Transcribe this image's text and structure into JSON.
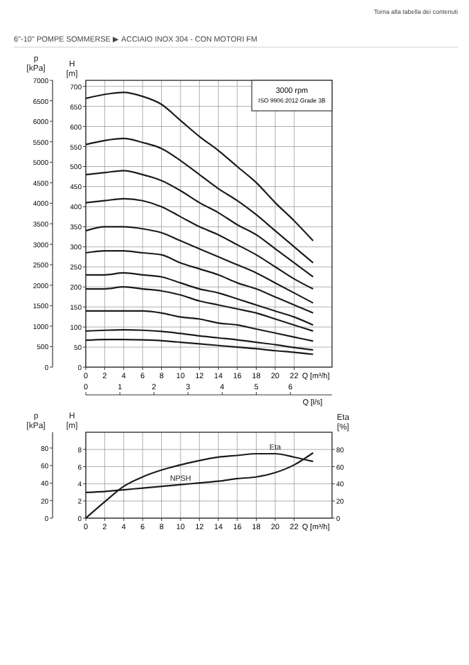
{
  "chart_data": [
    {
      "type": "line",
      "title": "6\"-10\" POMPE SOMMERSE ▶ ACCIAIO INOX 304 - CON MOTORI FM",
      "annotations": [
        "Torna alla tabella dei contenuti",
        "3000 rpm",
        "ISO 9906:2012 Grade 3B"
      ],
      "xlabel": "Q [m³/h]",
      "x2label": "Q [l/s]",
      "ylabel": "H [m]",
      "y2label": "p [kPa]",
      "x": [
        0,
        2,
        4,
        6,
        8,
        10,
        12,
        14,
        16,
        18,
        20,
        22,
        24
      ],
      "xlim": [
        0,
        26
      ],
      "xticks": [
        0,
        2,
        4,
        6,
        8,
        10,
        12,
        14,
        16,
        18,
        20,
        22
      ],
      "x2lim": [
        0,
        7.222
      ],
      "x2ticks": [
        0,
        1,
        2,
        3,
        4,
        5,
        6
      ],
      "ylim": [
        0,
        715
      ],
      "yticks": [
        0,
        50,
        100,
        150,
        200,
        250,
        300,
        350,
        400,
        450,
        500,
        550,
        600,
        650,
        700
      ],
      "y2lim": [
        0,
        7000
      ],
      "y2ticks": [
        0,
        500,
        1000,
        1500,
        2000,
        2500,
        3000,
        3500,
        4000,
        4500,
        5000,
        5500,
        6000,
        6500,
        7000
      ],
      "grid": true,
      "marker": "none",
      "line_style": "solid",
      "series": [
        {
          "color": "#1a1a1a",
          "values": [
            670,
            680,
            685,
            675,
            655,
            615,
            575,
            540,
            500,
            460,
            410,
            365,
            315
          ]
        },
        {
          "color": "#1a1a1a",
          "values": [
            555,
            565,
            570,
            560,
            545,
            515,
            480,
            445,
            415,
            380,
            340,
            300,
            260
          ]
        },
        {
          "color": "#1a1a1a",
          "values": [
            480,
            485,
            490,
            480,
            465,
            440,
            410,
            385,
            355,
            330,
            295,
            260,
            225
          ]
        },
        {
          "color": "#1a1a1a",
          "values": [
            410,
            415,
            420,
            415,
            400,
            375,
            350,
            330,
            305,
            280,
            250,
            220,
            195
          ]
        },
        {
          "color": "#1a1a1a",
          "values": [
            340,
            350,
            350,
            345,
            335,
            315,
            295,
            275,
            255,
            235,
            210,
            185,
            160
          ]
        },
        {
          "color": "#1a1a1a",
          "values": [
            285,
            290,
            290,
            285,
            280,
            260,
            245,
            230,
            210,
            195,
            175,
            155,
            135
          ]
        },
        {
          "color": "#1a1a1a",
          "values": [
            230,
            230,
            235,
            230,
            225,
            210,
            195,
            185,
            170,
            155,
            140,
            125,
            105
          ]
        },
        {
          "color": "#1a1a1a",
          "values": [
            195,
            195,
            200,
            195,
            190,
            180,
            165,
            155,
            145,
            135,
            120,
            105,
            90
          ]
        },
        {
          "color": "#1a1a1a",
          "values": [
            140,
            140,
            140,
            140,
            135,
            125,
            120,
            110,
            105,
            95,
            85,
            75,
            65
          ]
        },
        {
          "color": "#1a1a1a",
          "values": [
            90,
            92,
            93,
            92,
            89,
            84,
            78,
            73,
            68,
            62,
            56,
            49,
            43
          ]
        },
        {
          "color": "#1a1a1a",
          "values": [
            67,
            69,
            69,
            68,
            66,
            62,
            58,
            54,
            50,
            46,
            41,
            37,
            32
          ]
        }
      ]
    },
    {
      "type": "line",
      "xlabel": "Q [m³/h]",
      "ylabel": "H [m]",
      "y2label": "Eta [%]",
      "y3label": "p [kPa]",
      "x": [
        0,
        2,
        4,
        6,
        8,
        10,
        12,
        14,
        16,
        18,
        20,
        22,
        24
      ],
      "xlim": [
        0,
        26
      ],
      "xticks": [
        0,
        2,
        4,
        6,
        8,
        10,
        12,
        14,
        16,
        18,
        20,
        22
      ],
      "ylim": [
        0,
        10
      ],
      "yticks": [
        0,
        2,
        4,
        6,
        8
      ],
      "y2lim": [
        0,
        100
      ],
      "y2ticks": [
        0,
        20,
        40,
        60,
        80
      ],
      "y3lim": [
        0,
        98
      ],
      "y3ticks": [
        0,
        20,
        40,
        60,
        80
      ],
      "grid": true,
      "marker": "none",
      "line_style": "solid",
      "series": [
        {
          "name": "Eta",
          "axis": "y2",
          "color": "#1a1a1a",
          "values": [
            0,
            19,
            37,
            48,
            56,
            62,
            67,
            71,
            73,
            75,
            75,
            71,
            66
          ]
        },
        {
          "name": "NPSH",
          "axis": "y",
          "color": "#1a1a1a",
          "values": [
            3.0,
            3.1,
            3.3,
            3.5,
            3.7,
            3.9,
            4.1,
            4.3,
            4.6,
            4.8,
            5.3,
            6.2,
            7.6
          ]
        }
      ]
    }
  ]
}
